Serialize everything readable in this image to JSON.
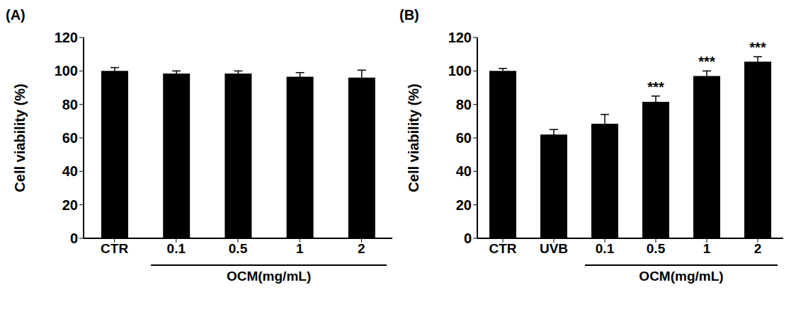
{
  "chart_data": [
    {
      "type": "bar",
      "title": "(A)",
      "y_label": "Cell viability (%)",
      "categories": [
        "CTR",
        "0.1",
        "0.5",
        "1",
        "2"
      ],
      "values": [
        100,
        98.5,
        98.5,
        96.5,
        96
      ],
      "errors": [
        2,
        1.5,
        1.5,
        2.5,
        4.5
      ],
      "x_group": {
        "label": "OCM(mg/mL)",
        "from": "0.1",
        "to": "2"
      },
      "color": "#000000",
      "ylim": [
        0,
        120
      ],
      "yticks": [
        0,
        20,
        40,
        60,
        80,
        100,
        120
      ],
      "grid": false
    },
    {
      "type": "bar",
      "title": "(B)",
      "y_label": "Cell viability (%)",
      "categories": [
        "CTR",
        "UVB",
        "0.1",
        "0.5",
        "1",
        "2"
      ],
      "values": [
        100,
        62,
        68.5,
        81.5,
        97,
        105.5
      ],
      "errors": [
        1.5,
        3,
        5.5,
        3.5,
        3,
        3
      ],
      "significance": [
        null,
        null,
        null,
        "***",
        "***",
        "***"
      ],
      "x_group": {
        "label": "OCM(mg/mL)",
        "from": "0.1",
        "to": "2"
      },
      "color": "#000000",
      "ylim": [
        0,
        120
      ],
      "yticks": [
        0,
        20,
        40,
        60,
        80,
        100,
        120
      ],
      "grid": false
    }
  ]
}
